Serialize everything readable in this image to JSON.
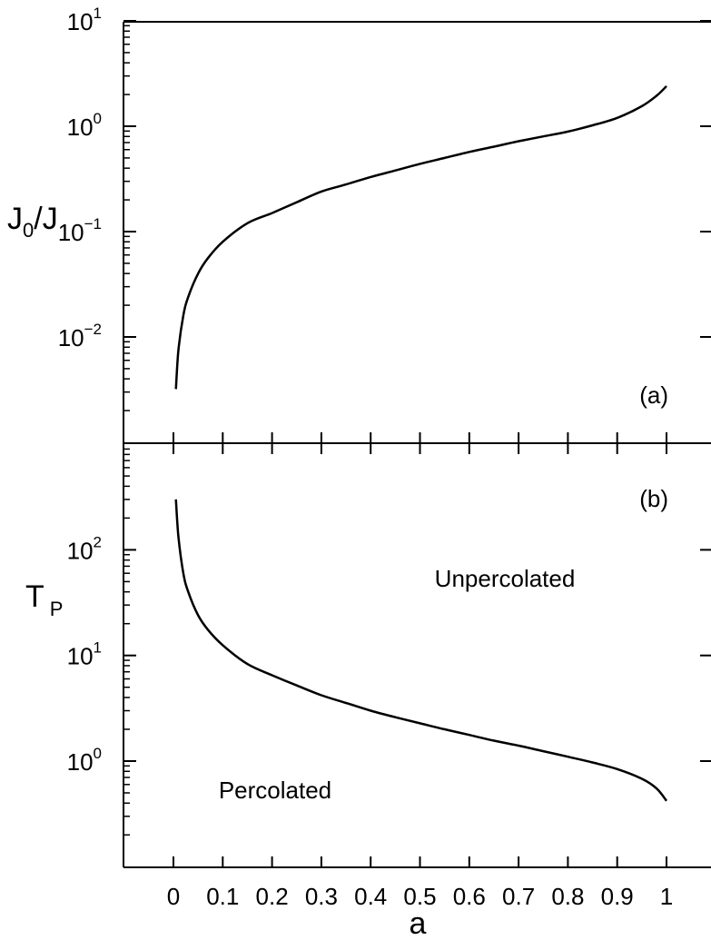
{
  "chart_data": [
    {
      "panel_label": "(a)",
      "type": "line",
      "ylabel": "J0/J",
      "ylabel_main": "J",
      "ylabel_sub": "0",
      "ylabel_tail": "/J",
      "yscale": "log",
      "ylim": [
        0.0005,
        10
      ],
      "xlim": [
        -0.1,
        1.1
      ],
      "y_ticks": [
        {
          "value": 10,
          "base": "10",
          "exp": "1"
        },
        {
          "value": 1,
          "base": "10",
          "exp": "0"
        },
        {
          "value": 0.1,
          "base": "10",
          "exp": "−1"
        },
        {
          "value": 0.01,
          "base": "10",
          "exp": "−2"
        }
      ],
      "series": [
        {
          "x": [
            0.005,
            0.01,
            0.02,
            0.03,
            0.05,
            0.07,
            0.1,
            0.15,
            0.2,
            0.25,
            0.3,
            0.35,
            0.4,
            0.45,
            0.5,
            0.55,
            0.6,
            0.65,
            0.7,
            0.75,
            0.8,
            0.85,
            0.9,
            0.95,
            0.98,
            1.0
          ],
          "y": [
            0.0032,
            0.0074,
            0.016,
            0.024,
            0.04,
            0.056,
            0.08,
            0.12,
            0.15,
            0.19,
            0.24,
            0.28,
            0.33,
            0.38,
            0.44,
            0.5,
            0.57,
            0.64,
            0.72,
            0.8,
            0.89,
            1.02,
            1.2,
            1.55,
            1.95,
            2.4
          ]
        }
      ]
    },
    {
      "panel_label": "(b)",
      "type": "line",
      "ylabel": "TP",
      "ylabel_main": "T",
      "ylabel_sub": "P",
      "xlabel": "a",
      "yscale": "log",
      "ylim": [
        0.05,
        900
      ],
      "xlim": [
        -0.1,
        1.1
      ],
      "x_ticks": [
        0,
        0.1,
        0.2,
        0.3,
        0.4,
        0.5,
        0.6,
        0.7,
        0.8,
        0.9,
        1
      ],
      "x_tick_labels": [
        "0",
        "0.1",
        "0.2",
        "0.3",
        "0.4",
        "0.5",
        "0.6",
        "0.7",
        "0.8",
        "0.9",
        "1"
      ],
      "y_ticks": [
        {
          "value": 100,
          "base": "10",
          "exp": "2"
        },
        {
          "value": 10,
          "base": "10",
          "exp": "1"
        },
        {
          "value": 1,
          "base": "10",
          "exp": "0"
        }
      ],
      "annotations": [
        "Unpercolated",
        "Percolated"
      ],
      "series": [
        {
          "x": [
            0.005,
            0.01,
            0.02,
            0.03,
            0.05,
            0.07,
            0.1,
            0.15,
            0.2,
            0.25,
            0.3,
            0.35,
            0.4,
            0.45,
            0.5,
            0.55,
            0.6,
            0.65,
            0.7,
            0.75,
            0.8,
            0.85,
            0.9,
            0.95,
            0.98,
            1.0
          ],
          "y": [
            300,
            135,
            60,
            40,
            24,
            17.5,
            12.5,
            8.3,
            6.5,
            5.2,
            4.2,
            3.55,
            3.0,
            2.6,
            2.28,
            2.0,
            1.77,
            1.56,
            1.4,
            1.24,
            1.1,
            0.97,
            0.84,
            0.68,
            0.55,
            0.42
          ]
        }
      ]
    }
  ]
}
